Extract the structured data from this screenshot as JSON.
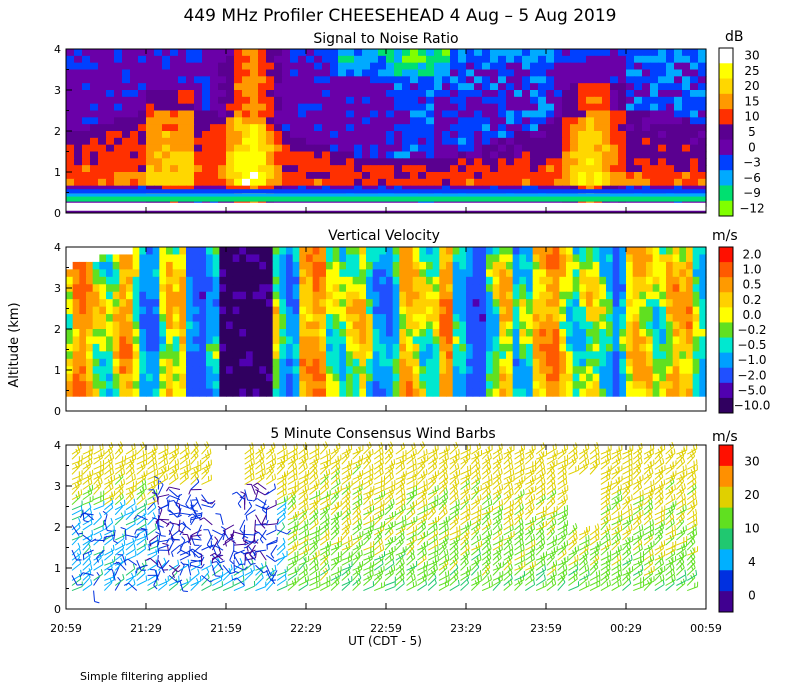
{
  "title": "449 MHz Profiler CHEESEHEAD  4 Aug –  5 Aug 2019",
  "y_axis_label": "Altitude (km)",
  "x_axis_label": "UT  (CDT - 5)",
  "footnote": "Simple filtering applied",
  "chart_data": [
    {
      "type": "heatmap",
      "title": "Signal to Noise Ratio",
      "ylabel": "Altitude (km)",
      "xlabel": "UT  (CDT - 5)",
      "ylim": [
        0,
        4
      ],
      "yticks": [
        "0",
        "1",
        "2",
        "3",
        "4"
      ],
      "xticks": [
        "20:59",
        "21:29",
        "21:59",
        "22:29",
        "22:59",
        "23:29",
        "23:59",
        "00:29",
        "00:59"
      ],
      "colorbar": {
        "unit": "dB",
        "labels": [
          "30",
          "25",
          "20",
          "15",
          "10",
          "5",
          "0",
          "−3",
          "−6",
          "−9",
          "−12"
        ],
        "colors": [
          "#ffffff",
          "#ffff00",
          "#ffd700",
          "#ff9900",
          "#ff3000",
          "#5a0090",
          "#6a00a8",
          "#0040ff",
          "#00aaff",
          "#00e070",
          "#80ff00"
        ]
      }
    },
    {
      "type": "heatmap",
      "title": "Vertical Velocity",
      "ylabel": "Altitude (km)",
      "xlabel": "UT  (CDT - 5)",
      "ylim": [
        0,
        4
      ],
      "yticks": [
        "0",
        "1",
        "2",
        "3",
        "4"
      ],
      "xticks": [
        "20:59",
        "21:29",
        "21:59",
        "22:29",
        "22:59",
        "23:29",
        "23:59",
        "00:29",
        "00:59"
      ],
      "colorbar": {
        "unit": "m/s",
        "labels": [
          "2.0",
          "1.0",
          "0.5",
          "0.2",
          "0.0",
          "−0.2",
          "−0.5",
          "−1.0",
          "−2.0",
          "−5.0",
          "−10.0"
        ],
        "colors": [
          "#ff1000",
          "#ff5a00",
          "#ff9a00",
          "#ffd000",
          "#ffff00",
          "#60e020",
          "#00e8d0",
          "#00a0ff",
          "#2050ff",
          "#5000b0",
          "#300060"
        ]
      }
    },
    {
      "type": "scatter",
      "title": "5 Minute Consensus Wind Barbs",
      "ylabel": "Altitude (km)",
      "xlabel": "UT  (CDT - 5)",
      "ylim": [
        0,
        4
      ],
      "yticks": [
        "0",
        "1",
        "2",
        "3",
        "4"
      ],
      "xticks": [
        "20:59",
        "21:29",
        "21:59",
        "22:29",
        "22:59",
        "23:29",
        "23:59",
        "00:29",
        "00:59"
      ],
      "colorbar": {
        "unit": "m/s",
        "labels": [
          "30",
          "20",
          "10",
          "4",
          "0"
        ],
        "colors": [
          "#ff1000",
          "#ff9000",
          "#e0d000",
          "#60e020",
          "#20c870",
          "#00b0ff",
          "#0030e0",
          "#400090"
        ]
      }
    }
  ]
}
